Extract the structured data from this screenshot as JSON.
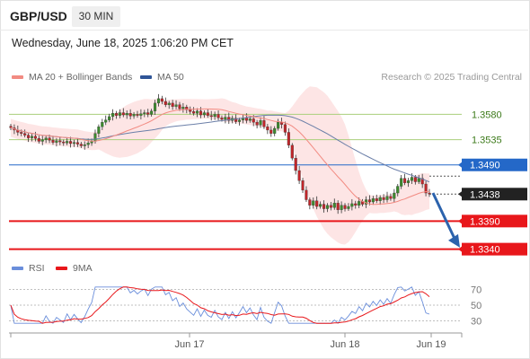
{
  "header": {
    "symbol": "GBP/USD",
    "timeframe": "30 MIN",
    "datetime": "Wednesday, June 18, 2025 1:06:20 PM CET"
  },
  "legend": {
    "ma20_label": "MA 20 + Bollinger Bands",
    "ma50_label": "MA 50",
    "research": "Research © 2025 Trading Central"
  },
  "rsi_legend": {
    "rsi_label": "RSI",
    "ma9_label": "9MA"
  },
  "colors": {
    "ma20": "#f28b82",
    "ma50": "#2f5597",
    "bollinger_fill": "#fde0e0",
    "resistance_green": "#a9cf7b",
    "pivot_blue": "#2468c8",
    "support_red": "#e8171b",
    "last_price_bg": "#222222",
    "rsi_line": "#6a8edb",
    "rsi_ma": "#e8171b",
    "candle_up": "#3c8a2e",
    "candle_down": "#c0262a",
    "arrow": "#2c63ad"
  },
  "chart_data": [
    {
      "type": "candlestick",
      "title": "GBP/USD 30 MIN",
      "xlabel": "",
      "ylabel": "",
      "x_ticks": [
        "Jun 17",
        "Jun 18",
        "Jun 19"
      ],
      "ylim": [
        1.3325,
        1.3635
      ],
      "ma20_bollinger": "shaded band",
      "ma50": "line",
      "levels": [
        {
          "value": "1.3580",
          "price": 1.358,
          "kind": "resistance",
          "color": "#a9cf7b"
        },
        {
          "value": "1.3535",
          "price": 1.3535,
          "kind": "resistance",
          "color": "#a9cf7b"
        },
        {
          "value": "1.3490",
          "price": 1.349,
          "kind": "pivot",
          "color": "#2468c8"
        },
        {
          "value": "1.3438",
          "price": 1.3438,
          "kind": "last",
          "color": "#222222"
        },
        {
          "value": "1.3390",
          "price": 1.339,
          "kind": "support",
          "color": "#e8171b"
        },
        {
          "value": "1.3340",
          "price": 1.334,
          "kind": "support",
          "color": "#e8171b"
        }
      ],
      "closes": [
        1.3556,
        1.3552,
        1.3548,
        1.3546,
        1.3543,
        1.3538,
        1.3541,
        1.3537,
        1.3532,
        1.3535,
        1.3538,
        1.3534,
        1.353,
        1.3533,
        1.3531,
        1.3529,
        1.3532,
        1.3528,
        1.353,
        1.3527,
        1.3524,
        1.3526,
        1.3529,
        1.3532,
        1.3546,
        1.3558,
        1.3566,
        1.357,
        1.3576,
        1.3582,
        1.3578,
        1.3583,
        1.3579,
        1.3582,
        1.3577,
        1.358,
        1.3578,
        1.3581,
        1.3583,
        1.358,
        1.3586,
        1.36,
        1.3608,
        1.3603,
        1.3597,
        1.36,
        1.3594,
        1.3597,
        1.359,
        1.3593,
        1.3588,
        1.3585,
        1.3582,
        1.3586,
        1.3579,
        1.3583,
        1.3578,
        1.3576,
        1.358,
        1.3574,
        1.3571,
        1.3575,
        1.3569,
        1.3573,
        1.3567,
        1.357,
        1.3574,
        1.3569,
        1.3572,
        1.3566,
        1.3561,
        1.3569,
        1.3558,
        1.3552,
        1.3546,
        1.3555,
        1.3566,
        1.3562,
        1.3548,
        1.3525,
        1.3502,
        1.348,
        1.3462,
        1.3445,
        1.3428,
        1.3418,
        1.3426,
        1.3416,
        1.342,
        1.3412,
        1.3418,
        1.3414,
        1.3422,
        1.341,
        1.3418,
        1.3412,
        1.3416,
        1.3421,
        1.3418,
        1.3425,
        1.342,
        1.3428,
        1.3424,
        1.343,
        1.3426,
        1.3432,
        1.3428,
        1.3434,
        1.343,
        1.344,
        1.3452,
        1.3466,
        1.3458,
        1.3462,
        1.3468,
        1.346,
        1.3466,
        1.3456,
        1.344,
        1.3438
      ],
      "rsi": {
        "ylim": [
          25,
          75
        ],
        "ticks": [
          "70",
          "50",
          "30"
        ],
        "tick_values": [
          70,
          50,
          30
        ]
      }
    }
  ]
}
